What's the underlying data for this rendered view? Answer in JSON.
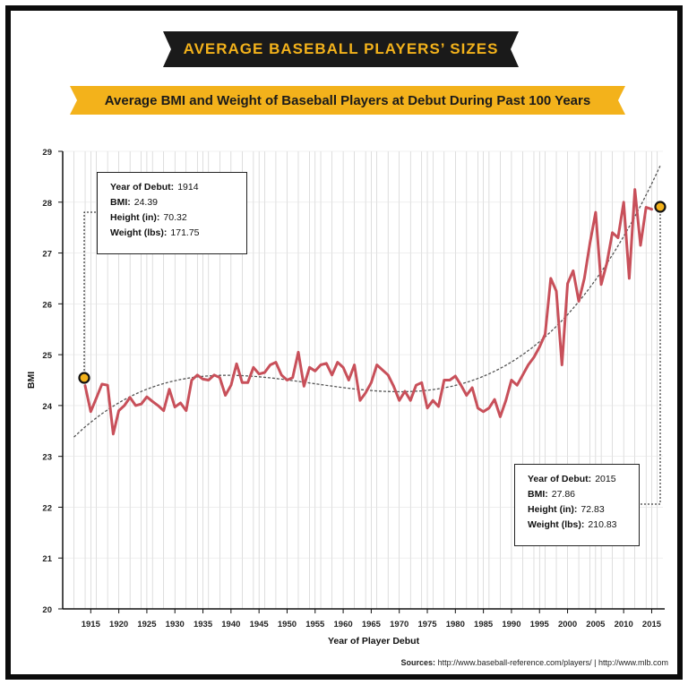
{
  "main_title": "AVERAGE BASEBALL PLAYERS’ SIZES",
  "subtitle": "Average BMI and Weight of Baseball Players at Debut During Past 100 Years",
  "colors": {
    "line": "#c8505a",
    "trend": "#555555",
    "banner_dark": "#1a1a1a",
    "banner_gold": "#f3b21b",
    "grid": "#c8c8c8"
  },
  "callout_1914": {
    "year_label": "Year of Debut:",
    "year": "1914",
    "bmi_label": "BMI:",
    "bmi": "24.39",
    "height_label": "Height (in):",
    "height": "70.32",
    "weight_label": "Weight (lbs):",
    "weight": "171.75"
  },
  "callout_2015": {
    "year_label": "Year of Debut:",
    "year": "2015",
    "bmi_label": "BMI:",
    "bmi": "27.86",
    "height_label": "Height (in):",
    "height": "72.83",
    "weight_label": "Weight (lbs):",
    "weight": "210.83"
  },
  "sources": {
    "label": "Sources:",
    "text": "http://www.baseball-reference.com/players/ | http://www.mlb.com"
  },
  "chart_data": {
    "type": "line",
    "title": "Average BMI and Weight of Baseball Players at Debut During Past 100 Years",
    "xlabel": "Year of Player Debut",
    "ylabel": "BMI",
    "xlim": [
      1910,
      2017
    ],
    "ylim": [
      20,
      29
    ],
    "x_ticks": [
      1915,
      1920,
      1925,
      1930,
      1935,
      1940,
      1945,
      1950,
      1955,
      1960,
      1965,
      1970,
      1975,
      1980,
      1985,
      1990,
      1995,
      2000,
      2005,
      2010,
      2015
    ],
    "y_ticks": [
      20,
      21,
      22,
      23,
      24,
      25,
      26,
      27,
      28,
      29
    ],
    "grid": "vertical",
    "series": [
      {
        "x": [
          1914,
          1915,
          1916,
          1917,
          1918,
          1919,
          1920,
          1921,
          1922,
          1923,
          1924,
          1925,
          1926,
          1927,
          1928,
          1929,
          1930,
          1931,
          1932,
          1933,
          1934,
          1935,
          1936,
          1937,
          1938,
          1939,
          1940,
          1941,
          1942,
          1943,
          1944,
          1945,
          1946,
          1947,
          1948,
          1949,
          1950,
          1951,
          1952,
          1953,
          1954,
          1955,
          1956,
          1957,
          1958,
          1959,
          1960,
          1961,
          1962,
          1963,
          1964,
          1965,
          1966,
          1967,
          1968,
          1969,
          1970,
          1971,
          1972,
          1973,
          1974,
          1975,
          1976,
          1977,
          1978,
          1979,
          1980,
          1981,
          1982,
          1983,
          1984,
          1985,
          1986,
          1987,
          1988,
          1989,
          1990,
          1991,
          1992,
          1993,
          1994,
          1995,
          1996,
          1997,
          1998,
          1999,
          2000,
          2001,
          2002,
          2003,
          2004,
          2005,
          2006,
          2007,
          2008,
          2009,
          2010,
          2011,
          2012,
          2013,
          2014,
          2015
        ],
        "values": [
          24.39,
          23.88,
          24.15,
          24.42,
          24.4,
          23.44,
          23.9,
          24.0,
          24.16,
          24.0,
          24.03,
          24.17,
          24.08,
          24.0,
          23.9,
          24.32,
          23.97,
          24.05,
          23.9,
          24.5,
          24.6,
          24.52,
          24.5,
          24.6,
          24.55,
          24.2,
          24.4,
          24.82,
          24.45,
          24.45,
          24.75,
          24.62,
          24.65,
          24.8,
          24.85,
          24.6,
          24.5,
          24.55,
          25.05,
          24.38,
          24.75,
          24.68,
          24.8,
          24.83,
          24.6,
          24.85,
          24.75,
          24.5,
          24.8,
          24.1,
          24.25,
          24.45,
          24.8,
          24.7,
          24.6,
          24.38,
          24.1,
          24.28,
          24.1,
          24.4,
          24.45,
          23.95,
          24.1,
          23.98,
          24.5,
          24.5,
          24.58,
          24.4,
          24.2,
          24.35,
          23.95,
          23.88,
          23.95,
          24.12,
          23.78,
          24.1,
          24.5,
          24.4,
          24.6,
          24.8,
          24.95,
          25.15,
          25.4,
          26.5,
          26.25,
          24.8,
          26.4,
          26.65,
          26.05,
          26.5,
          27.2,
          27.8,
          26.38,
          26.8,
          27.4,
          27.3,
          28.0,
          26.5,
          28.25,
          27.15,
          27.9,
          27.86
        ]
      }
    ],
    "trendline": true,
    "highlighted_points": [
      {
        "x": 1914,
        "y": 24.39
      },
      {
        "x": 2015,
        "y": 27.86
      }
    ]
  }
}
